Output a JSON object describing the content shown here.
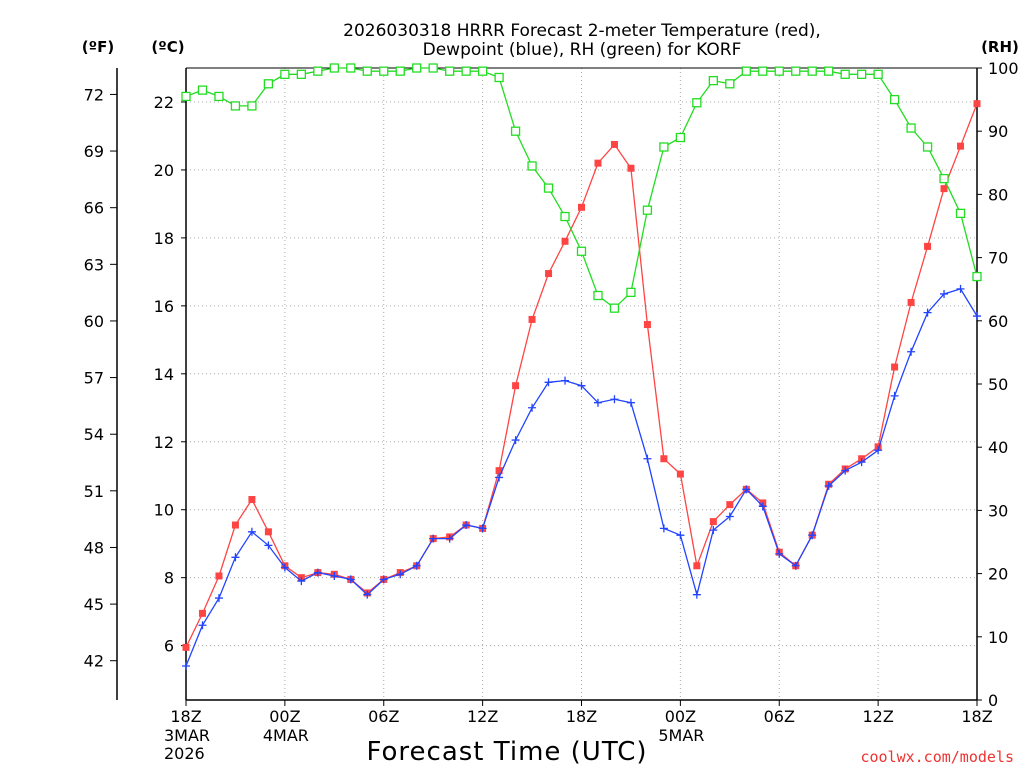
{
  "chart_data": {
    "type": "line",
    "title_line1": "2026030318 HRRR Forecast 2-meter Temperature (red),",
    "title_line2": "Dewpoint (blue), RH (green) for KORF",
    "xlabel": "Forecast Time (UTC)",
    "credit": "coolwx.com/models",
    "grid": true,
    "left_axis_f": {
      "label": "(ºF)",
      "ticks": [
        "42",
        "45",
        "48",
        "51",
        "54",
        "57",
        "60",
        "63",
        "66",
        "69",
        "72"
      ],
      "tick_values_c": [
        5.556,
        7.222,
        8.889,
        10.556,
        12.222,
        13.889,
        15.556,
        17.222,
        18.889,
        20.556,
        22.222
      ]
    },
    "left_axis_c": {
      "label": "(ºC)",
      "ticks": [
        "6",
        "8",
        "10",
        "12",
        "14",
        "16",
        "18",
        "20",
        "22"
      ],
      "ylim": [
        4.4,
        23.0
      ]
    },
    "right_axis_rh": {
      "label": "(RH)",
      "ticks": [
        "0",
        "10",
        "20",
        "30",
        "40",
        "50",
        "60",
        "70",
        "80",
        "90",
        "100"
      ],
      "ylim": [
        0,
        100
      ]
    },
    "x_range_hours": [
      0,
      48
    ],
    "x_ticks": [
      {
        "hour": 0,
        "line1": "18Z",
        "line2": "3MAR",
        "line3": "2026"
      },
      {
        "hour": 6,
        "line1": "00Z",
        "line2": "4MAR",
        "line3": ""
      },
      {
        "hour": 12,
        "line1": "06Z",
        "line2": "",
        "line3": ""
      },
      {
        "hour": 18,
        "line1": "12Z",
        "line2": "",
        "line3": ""
      },
      {
        "hour": 24,
        "line1": "18Z",
        "line2": "",
        "line3": ""
      },
      {
        "hour": 30,
        "line1": "00Z",
        "line2": "5MAR",
        "line3": ""
      },
      {
        "hour": 36,
        "line1": "06Z",
        "line2": "",
        "line3": ""
      },
      {
        "hour": 42,
        "line1": "12Z",
        "line2": "",
        "line3": ""
      },
      {
        "hour": 48,
        "line1": "18Z",
        "line2": "",
        "line3": ""
      }
    ],
    "series": [
      {
        "name": "Temperature",
        "axis": "c",
        "color": "#ff4444",
        "marker": "filled-square",
        "values": [
          5.95,
          6.95,
          8.05,
          9.55,
          10.3,
          9.35,
          8.35,
          8.0,
          8.15,
          8.1,
          7.95,
          7.55,
          7.95,
          8.15,
          8.35,
          9.15,
          9.2,
          9.55,
          9.45,
          11.15,
          13.65,
          15.6,
          16.95,
          17.9,
          18.9,
          20.2,
          20.75,
          20.05,
          15.45,
          11.5,
          11.05,
          8.35,
          9.65,
          10.15,
          10.6,
          10.2,
          8.75,
          8.35,
          9.25,
          10.75,
          11.2,
          11.5,
          11.85,
          14.2,
          16.1,
          17.75,
          19.45,
          20.7,
          21.95
        ]
      },
      {
        "name": "Dewpoint",
        "axis": "c",
        "color": "#2244ff",
        "marker": "plus",
        "values": [
          5.4,
          6.6,
          7.4,
          8.6,
          9.35,
          8.95,
          8.3,
          7.9,
          8.15,
          8.05,
          7.95,
          7.5,
          7.95,
          8.1,
          8.35,
          9.15,
          9.15,
          9.55,
          9.45,
          10.95,
          12.05,
          13.0,
          13.75,
          13.8,
          13.65,
          13.15,
          13.25,
          13.15,
          11.5,
          9.45,
          9.25,
          7.5,
          9.4,
          9.8,
          10.6,
          10.1,
          8.7,
          8.35,
          9.25,
          10.7,
          11.15,
          11.4,
          11.75,
          13.35,
          14.65,
          15.8,
          16.35,
          16.5,
          15.7
        ]
      },
      {
        "name": "RH",
        "axis": "rh",
        "color": "#22dd22",
        "marker": "open-square",
        "values": [
          95.5,
          96.5,
          95.5,
          94,
          94,
          97.5,
          99,
          99,
          99.5,
          100,
          100,
          99.5,
          99.5,
          99.5,
          100,
          100,
          99.5,
          99.5,
          99.5,
          98.5,
          90,
          84.5,
          81,
          76.5,
          71,
          64,
          62,
          64.5,
          77.5,
          87.5,
          89,
          94.5,
          98,
          97.5,
          99.5,
          99.5,
          99.5,
          99.5,
          99.5,
          99.5,
          99,
          99,
          99,
          95,
          90.5,
          87.5,
          82.5,
          77,
          67
        ]
      }
    ]
  }
}
